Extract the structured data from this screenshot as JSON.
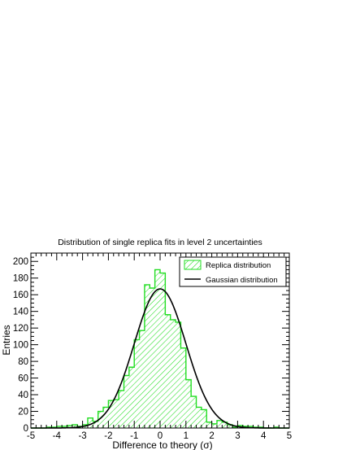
{
  "chart_data": {
    "type": "bar",
    "title": "Distribution of single replica fits in level 2 uncertainties",
    "xlabel": "Difference to theory (σ)",
    "ylabel": "Entries",
    "xlim": [
      -5,
      5
    ],
    "ylim": [
      0,
      210
    ],
    "x_ticks": [
      "-5",
      "-4",
      "-3",
      "-2",
      "-1",
      "0",
      "1",
      "2",
      "3",
      "4",
      "5"
    ],
    "y_ticks": [
      "0",
      "20",
      "40",
      "60",
      "80",
      "100",
      "120",
      "140",
      "160",
      "180",
      "200"
    ],
    "grid": false,
    "legend_position": "top-right",
    "series": [
      {
        "name": "Replica distribution",
        "kind": "histogram",
        "color": "#22dd22",
        "bin_edges": [
          -5.0,
          -4.8,
          -4.6,
          -4.4,
          -4.2,
          -4.0,
          -3.8,
          -3.6,
          -3.4,
          -3.2,
          -3.0,
          -2.8,
          -2.6,
          -2.4,
          -2.2,
          -2.0,
          -1.8,
          -1.6,
          -1.4,
          -1.2,
          -1.0,
          -0.8,
          -0.6,
          -0.4,
          -0.2,
          0.0,
          0.2,
          0.4,
          0.6,
          0.8,
          1.0,
          1.2,
          1.4,
          1.6,
          1.8,
          2.0,
          2.2,
          2.4,
          2.6,
          2.8,
          3.0,
          3.2,
          3.4,
          3.6,
          3.8,
          4.0,
          4.2,
          4.4,
          4.6,
          4.8,
          5.0
        ],
        "counts": [
          0,
          0,
          0,
          1,
          1,
          2,
          2,
          3,
          4,
          2,
          4,
          12,
          8,
          20,
          25,
          33,
          34,
          45,
          63,
          73,
          106,
          117,
          172,
          168,
          190,
          186,
          136,
          130,
          127,
          96,
          58,
          38,
          25,
          22,
          7,
          5,
          9,
          7,
          4,
          1,
          3,
          2,
          2,
          1,
          1,
          0,
          0,
          1,
          0,
          0
        ]
      },
      {
        "name": "Gaussian distribution",
        "kind": "curve",
        "color": "#000000",
        "function": "gaussian",
        "mean": 0,
        "sigma": 1,
        "amplitude": 167
      }
    ]
  }
}
